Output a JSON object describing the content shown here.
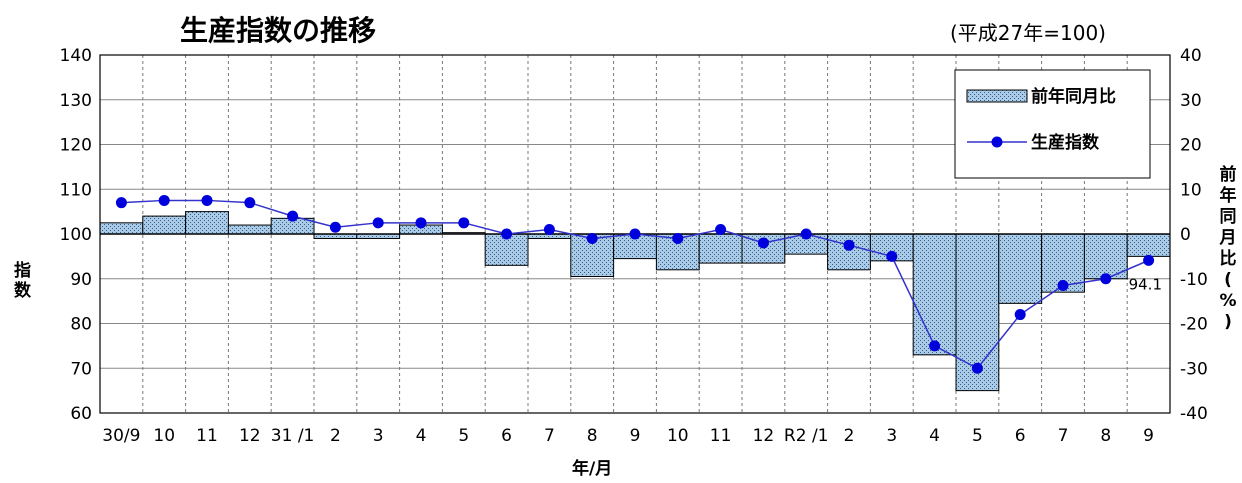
{
  "chart_data": {
    "type": "bar",
    "title": "生産指数の推移",
    "subtitle": "(平成27年=100)",
    "categories": [
      "30/9",
      "10",
      "11",
      "12",
      "31 /1",
      "2",
      "3",
      "4",
      "5",
      "6",
      "7",
      "8",
      "9",
      "10",
      "11",
      "12",
      "R2 /1",
      "2",
      "3",
      "4",
      "5",
      "6",
      "7",
      "8",
      "9"
    ],
    "xlabel": "年/月",
    "ylabel_left": "指数",
    "ylabel_right": "前年同月比(%)",
    "ylim_left": [
      60,
      140
    ],
    "yticks_left": [
      "60",
      "70",
      "80",
      "90",
      "100",
      "110",
      "120",
      "130",
      "140"
    ],
    "ylim_right": [
      -40,
      40
    ],
    "yticks_right": [
      "-40",
      "-30",
      "-20",
      "-10",
      "0",
      "10",
      "20",
      "30",
      "40"
    ],
    "series": [
      {
        "name": "前年同月比",
        "kind": "bar",
        "axis": "right",
        "color": "#a9cbe8",
        "values": [
          2.5,
          4.0,
          5.0,
          2.0,
          3.5,
          -1.0,
          -1.0,
          2.0,
          0.3,
          -7.0,
          -1.0,
          -9.5,
          -5.5,
          -8.0,
          -6.5,
          -6.5,
          -4.5,
          -8.0,
          -6.0,
          -27.0,
          -35.0,
          -15.5,
          -13.0,
          -10.0,
          -5.0
        ]
      },
      {
        "name": "生産指数",
        "kind": "line",
        "axis": "left",
        "color": "#0000cc",
        "values": [
          107.0,
          107.5,
          107.5,
          107.0,
          104.0,
          101.5,
          102.5,
          102.5,
          102.5,
          100.0,
          101.0,
          99.0,
          100.0,
          99.0,
          101.0,
          98.0,
          100.0,
          97.5,
          95.0,
          75.0,
          70.0,
          82.0,
          88.5,
          90.0,
          94.1
        ]
      }
    ],
    "annotations": [
      {
        "category": "9",
        "text": "94.1"
      }
    ],
    "legend_position": "top-right",
    "grid": "vertical dashed"
  }
}
